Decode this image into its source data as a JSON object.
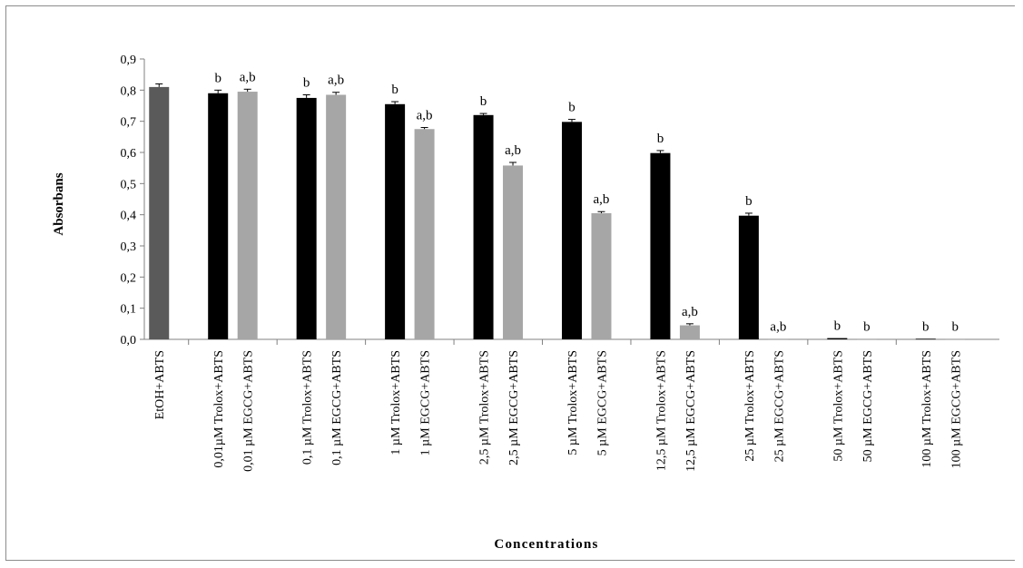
{
  "chart_data": {
    "type": "bar",
    "title": "",
    "xlabel": "Concentrations",
    "ylabel": "Absorbans",
    "ylim": [
      0,
      0.9
    ],
    "yticks": [
      "0,0",
      "0,1",
      "0,2",
      "0,3",
      "0,4",
      "0,5",
      "0,6",
      "0,7",
      "0,8",
      "0,9"
    ],
    "grid": false,
    "legend": "none",
    "groups": [
      {
        "bars": [
          {
            "label": "EtOH+ABTS",
            "value": 0.81,
            "error": 0.01,
            "color": "#5a5a5a",
            "annotation": ""
          }
        ]
      },
      {
        "bars": [
          {
            "label": "0,01µM Trolox+ABTS",
            "value": 0.79,
            "error": 0.01,
            "color": "#000000",
            "annotation": "b"
          },
          {
            "label": "0,01 µM EGCG+ABTS",
            "value": 0.795,
            "error": 0.008,
            "color": "#a6a6a6",
            "annotation": "a,b"
          }
        ]
      },
      {
        "bars": [
          {
            "label": "0,1 µM Trolox+ABTS",
            "value": 0.775,
            "error": 0.01,
            "color": "#000000",
            "annotation": "b"
          },
          {
            "label": "0,1 µM EGCG+ABTS",
            "value": 0.785,
            "error": 0.008,
            "color": "#a6a6a6",
            "annotation": "a,b"
          }
        ]
      },
      {
        "bars": [
          {
            "label": "1 µM Trolox+ABTS",
            "value": 0.755,
            "error": 0.008,
            "color": "#000000",
            "annotation": "b"
          },
          {
            "label": "1 µM EGCG+ABTS",
            "value": 0.675,
            "error": 0.005,
            "color": "#a6a6a6",
            "annotation": "a,b"
          }
        ]
      },
      {
        "bars": [
          {
            "label": "2,5 µM Trolox+ABTS",
            "value": 0.72,
            "error": 0.005,
            "color": "#000000",
            "annotation": "b"
          },
          {
            "label": "2,5 µM EGCG+ABTS",
            "value": 0.558,
            "error": 0.01,
            "color": "#a6a6a6",
            "annotation": "a,b"
          }
        ]
      },
      {
        "bars": [
          {
            "label": "5 µM Trolox+ABTS",
            "value": 0.698,
            "error": 0.008,
            "color": "#000000",
            "annotation": "b"
          },
          {
            "label": "5 µM EGCG+ABTS",
            "value": 0.405,
            "error": 0.005,
            "color": "#a6a6a6",
            "annotation": "a,b"
          }
        ]
      },
      {
        "bars": [
          {
            "label": "12,5 µM Trolox+ABTS",
            "value": 0.598,
            "error": 0.008,
            "color": "#000000",
            "annotation": "b"
          },
          {
            "label": "12,5 µM EGCG+ABTS",
            "value": 0.045,
            "error": 0.005,
            "color": "#a6a6a6",
            "annotation": "a,b"
          }
        ]
      },
      {
        "bars": [
          {
            "label": "25 µM Trolox+ABTS",
            "value": 0.397,
            "error": 0.008,
            "color": "#000000",
            "annotation": "b"
          },
          {
            "label": "25 µM EGCG+ABTS",
            "value": 0.002,
            "error": 0.0,
            "color": "#a6a6a6",
            "annotation": "a,b"
          }
        ]
      },
      {
        "bars": [
          {
            "label": "50 µM Trolox+ABTS",
            "value": 0.004,
            "error": 0.0,
            "color": "#000000",
            "annotation": "b"
          },
          {
            "label": "50 µM EGCG+ABTS",
            "value": 0.002,
            "error": 0.0,
            "color": "#a6a6a6",
            "annotation": "b"
          }
        ]
      },
      {
        "bars": [
          {
            "label": "100 µM Trolox+ABTS",
            "value": 0.002,
            "error": 0.0,
            "color": "#000000",
            "annotation": "b"
          },
          {
            "label": "100 µM EGCG+ABTS",
            "value": 0.002,
            "error": 0.0,
            "color": "#a6a6a6",
            "annotation": "b"
          }
        ]
      }
    ]
  }
}
